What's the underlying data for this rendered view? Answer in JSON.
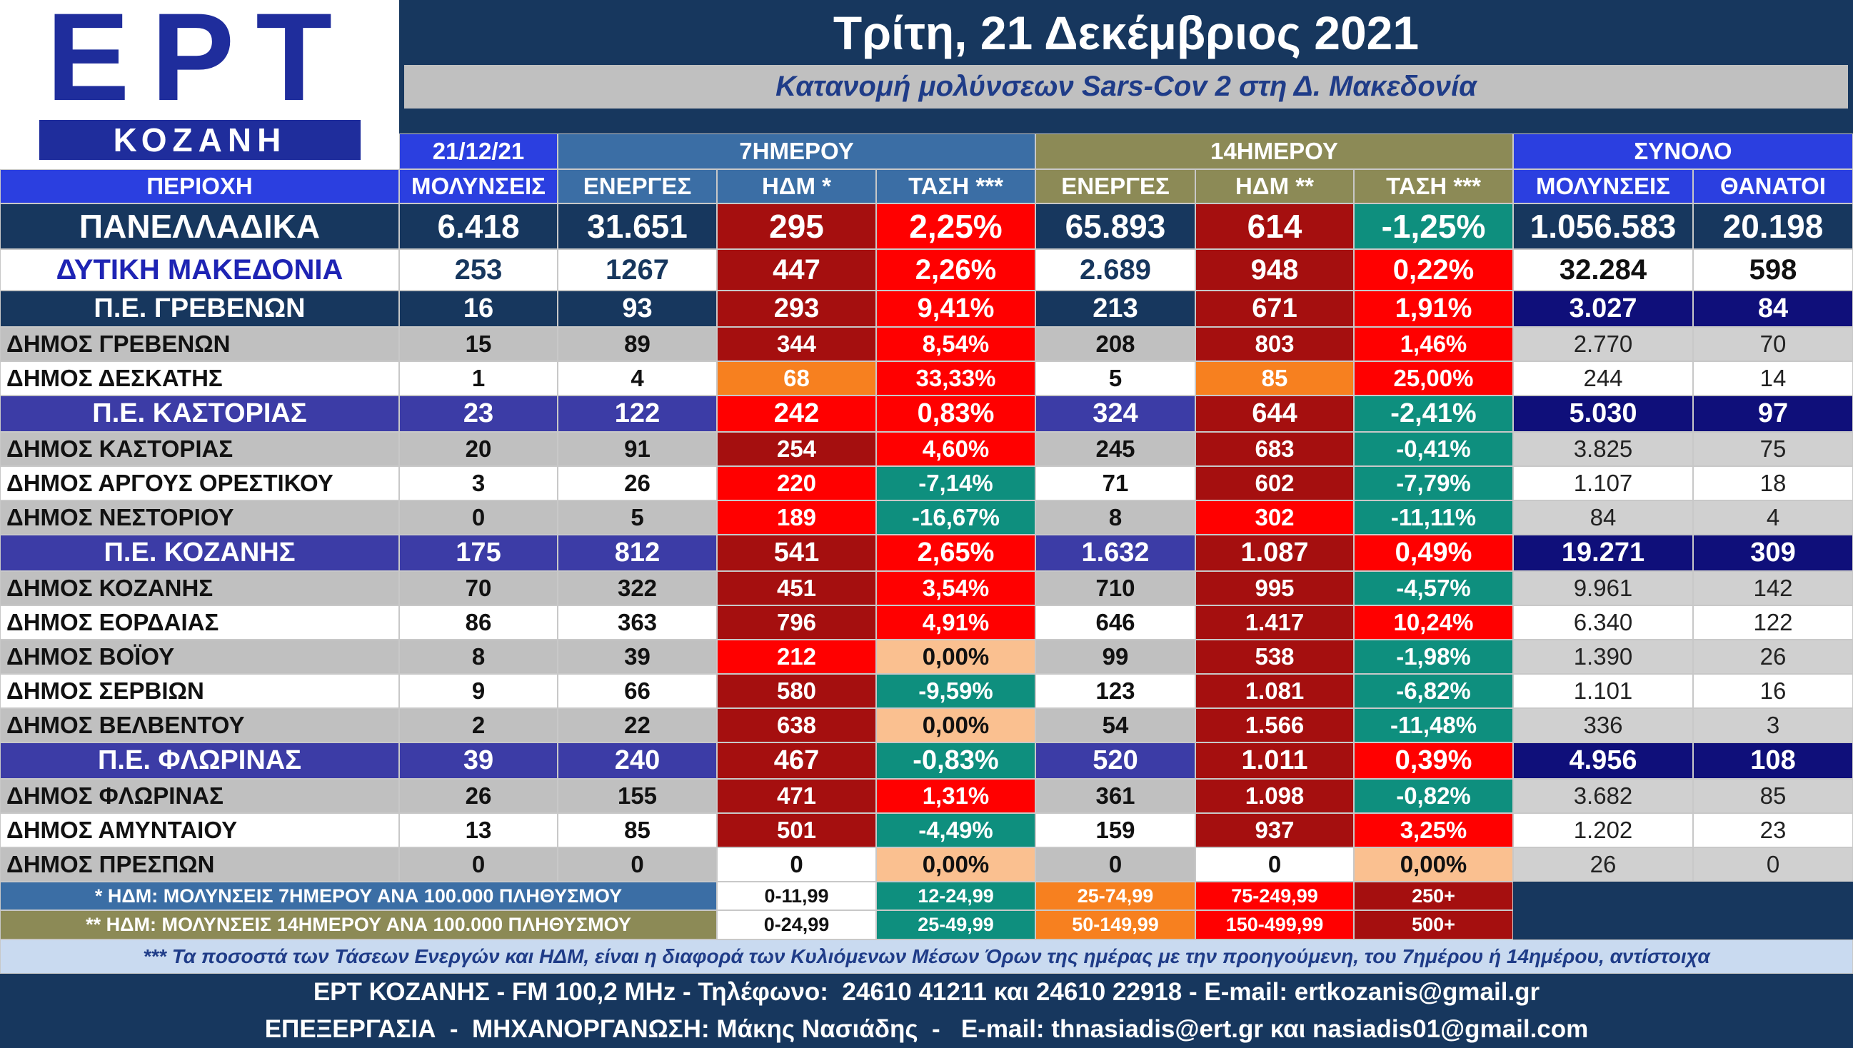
{
  "header": {
    "logo": "ΕΡΤ",
    "logo_sub": "ΚΟΖΑΝΗ",
    "title": "Τρίτη, 21 Δεκέμβριος 2021",
    "subtitle": "Κατανομή μολύνσεων Sars-Cov 2 στη Δ. Μακεδονία"
  },
  "table": {
    "group_headers": [
      "21/12/21",
      "7ΗΜΕΡΟΥ",
      "14ΗΜΕΡΟΥ",
      "ΣΥΝΟΛΟ"
    ],
    "columns": [
      "ΠΕΡΙΟΧΗ",
      "ΜΟΛΥΝΣΕΙΣ",
      "ΕΝΕΡΓΕΣ",
      "ΗΔΜ *",
      "ΤΑΣΗ ***",
      "ΕΝΕΡΓΕΣ",
      "ΗΔΜ **",
      "ΤΑΣΗ ***",
      "ΜΟΛΥΝΣΕΙΣ",
      "ΘΑΝΑΤΟΙ"
    ],
    "rows": [
      [
        "ΠΑΝΕΛΛΑΔΙΚΑ",
        "6.418",
        "31.651",
        "295",
        "2,25%",
        "65.893",
        "614",
        "-1,25%",
        "1.056.583",
        "20.198"
      ],
      [
        "ΔΥΤΙΚΗ ΜΑΚΕΔΟΝΙΑ",
        "253",
        "1267",
        "447",
        "2,26%",
        "2.689",
        "948",
        "0,22%",
        "32.284",
        "598"
      ],
      [
        "Π.Ε. ΓΡΕΒΕΝΩΝ",
        "16",
        "93",
        "293",
        "9,41%",
        "213",
        "671",
        "1,91%",
        "3.027",
        "84"
      ],
      [
        "ΔΗΜΟΣ ΓΡΕΒΕΝΩΝ",
        "15",
        "89",
        "344",
        "8,54%",
        "208",
        "803",
        "1,46%",
        "2.770",
        "70"
      ],
      [
        "ΔΗΜΟΣ ΔΕΣΚΑΤΗΣ",
        "1",
        "4",
        "68",
        "33,33%",
        "5",
        "85",
        "25,00%",
        "244",
        "14"
      ],
      [
        "Π.Ε. ΚΑΣΤΟΡΙΑΣ",
        "23",
        "122",
        "242",
        "0,83%",
        "324",
        "644",
        "-2,41%",
        "5.030",
        "97"
      ],
      [
        "ΔΗΜΟΣ ΚΑΣΤΟΡΙΑΣ",
        "20",
        "91",
        "254",
        "4,60%",
        "245",
        "683",
        "-0,41%",
        "3.825",
        "75"
      ],
      [
        "ΔΗΜΟΣ ΑΡΓΟΥΣ ΟΡΕΣΤΙΚΟΥ",
        "3",
        "26",
        "220",
        "-7,14%",
        "71",
        "602",
        "-7,79%",
        "1.107",
        "18"
      ],
      [
        "ΔΗΜΟΣ ΝΕΣΤΟΡΙΟΥ",
        "0",
        "5",
        "189",
        "-16,67%",
        "8",
        "302",
        "-11,11%",
        "84",
        "4"
      ],
      [
        "Π.Ε. ΚΟΖΑΝΗΣ",
        "175",
        "812",
        "541",
        "2,65%",
        "1.632",
        "1.087",
        "0,49%",
        "19.271",
        "309"
      ],
      [
        "ΔΗΜΟΣ ΚΟΖΑΝΗΣ",
        "70",
        "322",
        "451",
        "3,54%",
        "710",
        "995",
        "-4,57%",
        "9.961",
        "142"
      ],
      [
        "ΔΗΜΟΣ ΕΟΡΔΑΙΑΣ",
        "86",
        "363",
        "796",
        "4,91%",
        "646",
        "1.417",
        "10,24%",
        "6.340",
        "122"
      ],
      [
        "ΔΗΜΟΣ ΒΟΪΟΥ",
        "8",
        "39",
        "212",
        "0,00%",
        "99",
        "538",
        "-1,98%",
        "1.390",
        "26"
      ],
      [
        "ΔΗΜΟΣ ΣΕΡΒΙΩΝ",
        "9",
        "66",
        "580",
        "-9,59%",
        "123",
        "1.081",
        "-6,82%",
        "1.101",
        "16"
      ],
      [
        "ΔΗΜΟΣ ΒΕΛΒΕΝΤΟΥ",
        "2",
        "22",
        "638",
        "0,00%",
        "54",
        "1.566",
        "-11,48%",
        "336",
        "3"
      ],
      [
        "Π.Ε. ΦΛΩΡΙΝΑΣ",
        "39",
        "240",
        "467",
        "-0,83%",
        "520",
        "1.011",
        "0,39%",
        "4.956",
        "108"
      ],
      [
        "ΔΗΜΟΣ ΦΛΩΡΙΝΑΣ",
        "26",
        "155",
        "471",
        "1,31%",
        "361",
        "1.098",
        "-0,82%",
        "3.682",
        "85"
      ],
      [
        "ΔΗΜΟΣ ΑΜΥΝΤΑΙΟΥ",
        "13",
        "85",
        "501",
        "-4,49%",
        "159",
        "937",
        "3,25%",
        "1.202",
        "23"
      ],
      [
        "ΔΗΜΟΣ ΠΡΕΣΠΩΝ",
        "0",
        "0",
        "0",
        "0,00%",
        "0",
        "0",
        "0,00%",
        "26",
        "0"
      ]
    ]
  },
  "legend": [
    {
      "label": "* ΗΔΜ: ΜΟΛΥΝΣΕΙΣ 7ΗΜΕΡΟΥ ΑΝΑ 100.000 ΠΛΗΘΥΣΜΟΥ",
      "ranges": [
        "0-11,99",
        "12-24,99",
        "25-74,99",
        "75-249,99",
        "250+"
      ]
    },
    {
      "label": "** ΗΔΜ: ΜΟΛΥΝΣΕΙΣ 14ΗΜΕΡΟΥ ΑΝΑ 100.000 ΠΛΗΘΥΣΜΟΥ",
      "ranges": [
        "0-24,99",
        "25-49,99",
        "50-149,99",
        "150-499,99",
        "500+"
      ]
    }
  ],
  "note": "*** Τα ποσοστά των Τάσεων Ενεργών και ΗΔΜ, είναι η διαφορά των Κυλιόμενων Μέσων Όρων της ημέρας με την προηγούμενη, του 7ημέρου ή 14ημέρου, αντίστοιχα",
  "footer": [
    "ΕΡΤ ΚΟΖΑΝΗΣ - FM 100,2 MHz - Τηλέφωνο:  24610 41211 και 24610 22918 - E-mail: ertkozanis@gmail.gr",
    "ΕΠΕΞΕΡΓΑΣΙΑ  -  ΜΗΧΑΝΟΡΓΑΝΩΣΗ: Μάκης Νασιάδης  -   E-mail: thnasiadis@ert.gr και nasiadis01@gmail.com"
  ]
}
